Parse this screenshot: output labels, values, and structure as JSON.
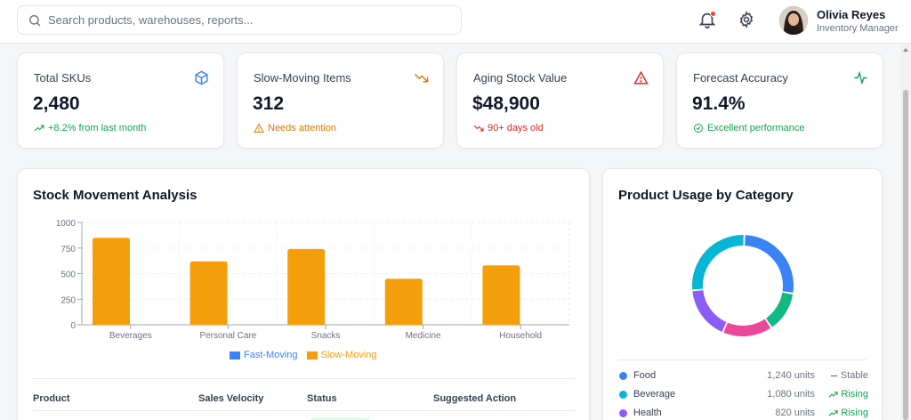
{
  "search": {
    "placeholder": "Search products, warehouses, reports..."
  },
  "user": {
    "name": "Olivia Reyes",
    "role": "Inventory Manager"
  },
  "kpis": [
    {
      "title": "Total SKUs",
      "value": "2,480",
      "sub": "+8.2% from last month",
      "icon": "box-icon",
      "tone": "green"
    },
    {
      "title": "Slow-Moving Items",
      "value": "312",
      "sub": "Needs attention",
      "icon": "trending-down-icon",
      "tone": "amber"
    },
    {
      "title": "Aging Stock Value",
      "value": "$48,900",
      "sub": "90+ days old",
      "icon": "alert-triangle-icon",
      "tone": "red"
    },
    {
      "title": "Forecast Accuracy",
      "value": "91.4%",
      "sub": "Excellent performance",
      "icon": "activity-icon",
      "tone": "green"
    }
  ],
  "movement": {
    "title": "Stock Movement Analysis",
    "table_headers": [
      "Product",
      "Sales Velocity",
      "Status",
      "Suggested Action"
    ]
  },
  "chart_data": {
    "type": "bar",
    "categories": [
      "Beverages",
      "Personal Care",
      "Snacks",
      "Medicine",
      "Household"
    ],
    "series": [
      {
        "name": "Fast-Moving",
        "values": [
          0,
          0,
          0,
          0,
          0
        ],
        "color": "#3b82f6"
      },
      {
        "name": "Slow-Moving",
        "values": [
          850,
          620,
          740,
          450,
          580
        ],
        "color": "#f59e0b"
      }
    ],
    "ylim": [
      0,
      1000
    ],
    "yticks": [
      0,
      250,
      500,
      750,
      1000
    ],
    "grid": true,
    "legend": "bottom"
  },
  "usage": {
    "title": "Product Usage by Category",
    "rows": [
      {
        "name": "Food",
        "units": "1,240 units",
        "trend": "Stable",
        "trend_type": "stable",
        "color": "#3b82f6"
      },
      {
        "name": "Beverage",
        "units": "1,080 units",
        "trend": "Rising",
        "trend_type": "rising",
        "color": "#06b6d4"
      },
      {
        "name": "Health",
        "units": "820 units",
        "trend": "Rising",
        "trend_type": "rising",
        "color": "#8b5cf6"
      }
    ],
    "donut": [
      {
        "label": "Food",
        "value": 27,
        "color": "#3b82f6"
      },
      {
        "label": "Green segment",
        "value": 13,
        "color": "#10b981"
      },
      {
        "label": "Pink segment",
        "value": 16,
        "color": "#ec4899"
      },
      {
        "label": "Health",
        "value": 17,
        "color": "#8b5cf6"
      },
      {
        "label": "Beverage",
        "value": 27,
        "color": "#06b6d4"
      }
    ]
  }
}
